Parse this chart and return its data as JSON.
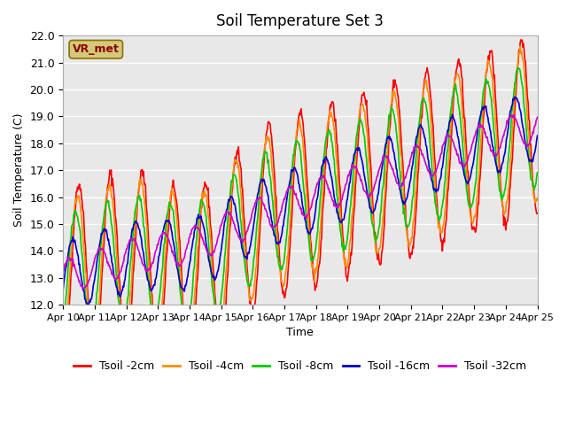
{
  "title": "Soil Temperature Set 3",
  "xlabel": "Time",
  "ylabel": "Soil Temperature (C)",
  "ylim": [
    12.0,
    22.0
  ],
  "yticks": [
    12.0,
    13.0,
    14.0,
    15.0,
    16.0,
    17.0,
    18.0,
    19.0,
    20.0,
    21.0,
    22.0
  ],
  "bg_color": "#e8e8e8",
  "fig_color": "#ffffff",
  "grid_color": "#ffffff",
  "annotation_text": "VR_met",
  "annotation_color": "#8b0000",
  "annotation_bg": "#d4c87a",
  "series_colors": [
    "#ff0000",
    "#ff8c00",
    "#00cc00",
    "#0000cc",
    "#cc00cc"
  ],
  "series_labels": [
    "Tsoil -2cm",
    "Tsoil -4cm",
    "Tsoil -8cm",
    "Tsoil -16cm",
    "Tsoil -32cm"
  ],
  "xtick_labels": [
    "Apr 10",
    "Apr 11",
    "Apr 12",
    "Apr 13",
    "Apr 14",
    "Apr 15",
    "Apr 16",
    "Apr 17",
    "Apr 18",
    "Apr 19",
    "Apr 20",
    "Apr 21",
    "Apr 22",
    "Apr 23",
    "Apr 24",
    "Apr 25"
  ],
  "n_days": 15,
  "pts_per_day": 48
}
